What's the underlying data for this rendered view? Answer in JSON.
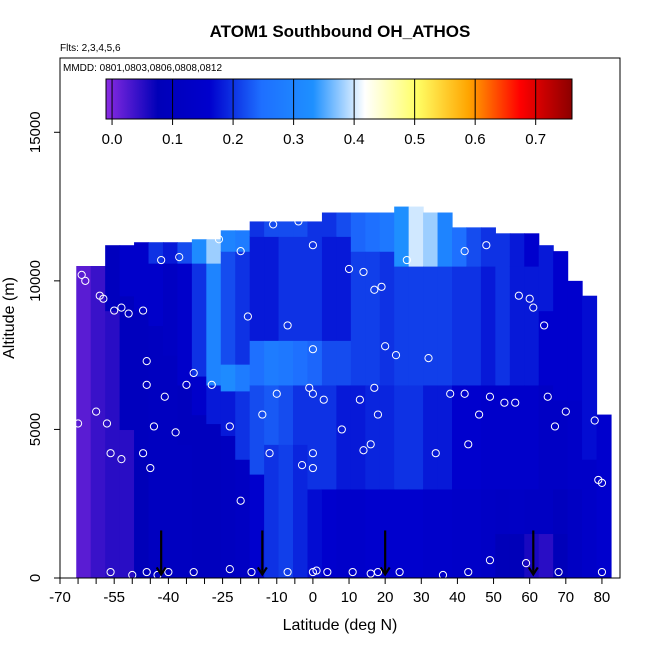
{
  "chart_data": {
    "type": "heatmap",
    "title": "ATOM1 Southbound OH_ATHOS",
    "annotations": [
      "Flts: 2,3,4,5,6",
      "MMDD: 0801,0803,0806,0808,0812"
    ],
    "xlabel": "Latitude (deg N)",
    "ylabel": "Altitude (m)",
    "xlim": [
      -70,
      85
    ],
    "ylim": [
      0,
      17500
    ],
    "x_ticks": [
      -70,
      -55,
      -40,
      -25,
      -10,
      0,
      10,
      20,
      30,
      40,
      50,
      60,
      70,
      80
    ],
    "x_tick_labels": [
      "-70",
      "-55",
      "-40",
      "-25",
      "-10",
      "0",
      "10",
      "20",
      "30",
      "40",
      "50",
      "60",
      "70",
      "80"
    ],
    "y_ticks": [
      0,
      5000,
      10000,
      15000
    ],
    "y_tick_labels": [
      "0",
      "5000",
      "10000",
      "15000"
    ],
    "colorbar": {
      "range": [
        -0.01,
        0.76
      ],
      "ticks": [
        0.0,
        0.1,
        0.2,
        0.3,
        0.4,
        0.5,
        0.6,
        0.7
      ],
      "tick_labels": [
        "0.0",
        "0.1",
        "0.2",
        "0.3",
        "0.4",
        "0.5",
        "0.6",
        "0.7"
      ],
      "colors": [
        "#8a2be2",
        "#0000b8",
        "#0000cd",
        "#1e6fff",
        "#1e90ff",
        "#ffffff",
        "#ffff66",
        "#ffa500",
        "#ff0000",
        "#8b0000"
      ]
    },
    "field_columns": [
      {
        "x": -63.5,
        "top": 10500,
        "seg": [
          [
            0,
            0.02
          ]
        ]
      },
      {
        "x": -59.5,
        "top": 10500,
        "seg": [
          [
            0,
            0.04
          ]
        ]
      },
      {
        "x": -55.5,
        "top": 11200,
        "seg": [
          [
            0,
            0.05
          ],
          [
            9000,
            0.1
          ]
        ]
      },
      {
        "x": -51.5,
        "top": 11200,
        "seg": [
          [
            0,
            0.05
          ],
          [
            5000,
            0.1
          ],
          [
            9500,
            0.15
          ]
        ]
      },
      {
        "x": -47.5,
        "top": 11300,
        "seg": [
          [
            0,
            0.08
          ],
          [
            4000,
            0.1
          ],
          [
            9000,
            0.15
          ]
        ]
      },
      {
        "x": -43.5,
        "top": 11300,
        "seg": [
          [
            0,
            0.11
          ],
          [
            8500,
            0.15
          ],
          [
            10600,
            0.2
          ]
        ]
      },
      {
        "x": -39.5,
        "top": 11300,
        "seg": [
          [
            0,
            0.11
          ],
          [
            7500,
            0.12
          ],
          [
            10600,
            0.18
          ]
        ]
      },
      {
        "x": -35.5,
        "top": 11300,
        "seg": [
          [
            0,
            0.11
          ],
          [
            4500,
            0.1
          ],
          [
            6500,
            0.15
          ],
          [
            10600,
            0.22
          ]
        ]
      },
      {
        "x": -31.5,
        "top": 11400,
        "seg": [
          [
            0,
            0.1
          ],
          [
            5500,
            0.15
          ],
          [
            6800,
            0.2
          ],
          [
            10600,
            0.32
          ]
        ]
      },
      {
        "x": -27.5,
        "top": 11400,
        "seg": [
          [
            0,
            0.1
          ],
          [
            5200,
            0.18
          ],
          [
            6500,
            0.3
          ],
          [
            10600,
            0.38
          ]
        ]
      },
      {
        "x": -23.5,
        "top": 11700,
        "seg": [
          [
            0,
            0.11
          ],
          [
            4800,
            0.18
          ],
          [
            6300,
            0.32
          ],
          [
            7200,
            0.22
          ],
          [
            11000,
            0.3
          ]
        ]
      },
      {
        "x": -19.5,
        "top": 11700,
        "seg": [
          [
            0,
            0.12
          ],
          [
            4000,
            0.2
          ],
          [
            6300,
            0.28
          ],
          [
            7200,
            0.2
          ],
          [
            11000,
            0.28
          ]
        ]
      },
      {
        "x": -15.5,
        "top": 12000,
        "seg": [
          [
            0,
            0.16
          ],
          [
            3500,
            0.22
          ],
          [
            6500,
            0.25
          ],
          [
            8000,
            0.18
          ],
          [
            11500,
            0.2
          ]
        ]
      },
      {
        "x": -11.5,
        "top": 12000,
        "seg": [
          [
            0,
            0.2
          ],
          [
            4500,
            0.23
          ],
          [
            6500,
            0.28
          ],
          [
            8000,
            0.18
          ],
          [
            11500,
            0.22
          ]
        ]
      },
      {
        "x": -7.5,
        "top": 12000,
        "seg": [
          [
            0,
            0.21
          ],
          [
            4500,
            0.22
          ],
          [
            6500,
            0.27
          ],
          [
            8000,
            0.2
          ],
          [
            11500,
            0.22
          ]
        ]
      },
      {
        "x": -3.5,
        "top": 12000,
        "seg": [
          [
            0,
            0.19
          ],
          [
            4500,
            0.2
          ],
          [
            6500,
            0.25
          ],
          [
            8000,
            0.2
          ],
          [
            11500,
            0.22
          ]
        ]
      },
      {
        "x": 0.5,
        "top": 12000,
        "seg": [
          [
            0,
            0.17
          ],
          [
            3000,
            0.2
          ],
          [
            6500,
            0.24
          ],
          [
            8000,
            0.2
          ],
          [
            11500,
            0.2
          ]
        ]
      },
      {
        "x": 4.5,
        "top": 12300,
        "seg": [
          [
            0,
            0.16
          ],
          [
            3000,
            0.2
          ],
          [
            6500,
            0.22
          ],
          [
            8000,
            0.18
          ],
          [
            11500,
            0.2
          ]
        ]
      },
      {
        "x": 8.5,
        "top": 12300,
        "seg": [
          [
            0,
            0.15
          ],
          [
            3000,
            0.18
          ],
          [
            6500,
            0.22
          ],
          [
            8000,
            0.18
          ],
          [
            11500,
            0.22
          ]
        ]
      },
      {
        "x": 12.5,
        "top": 12300,
        "seg": [
          [
            0,
            0.15
          ],
          [
            3000,
            0.18
          ],
          [
            6500,
            0.21
          ],
          [
            11000,
            0.24
          ]
        ]
      },
      {
        "x": 16.5,
        "top": 12300,
        "seg": [
          [
            0,
            0.16
          ],
          [
            3000,
            0.19
          ],
          [
            6500,
            0.21
          ],
          [
            11000,
            0.25
          ]
        ]
      },
      {
        "x": 20.5,
        "top": 12300,
        "seg": [
          [
            0,
            0.16
          ],
          [
            3000,
            0.19
          ],
          [
            6500,
            0.2
          ],
          [
            11000,
            0.27
          ]
        ]
      },
      {
        "x": 24.5,
        "top": 12500,
        "seg": [
          [
            0,
            0.16
          ],
          [
            3000,
            0.2
          ],
          [
            6500,
            0.21
          ],
          [
            10500,
            0.33
          ]
        ]
      },
      {
        "x": 28.5,
        "top": 12500,
        "seg": [
          [
            0,
            0.16
          ],
          [
            3000,
            0.2
          ],
          [
            6500,
            0.21
          ],
          [
            10500,
            0.4
          ]
        ]
      },
      {
        "x": 32.5,
        "top": 12300,
        "seg": [
          [
            0,
            0.15
          ],
          [
            3000,
            0.18
          ],
          [
            6500,
            0.21
          ],
          [
            10500,
            0.38
          ]
        ]
      },
      {
        "x": 36.5,
        "top": 12300,
        "seg": [
          [
            0,
            0.15
          ],
          [
            3000,
            0.18
          ],
          [
            6500,
            0.21
          ],
          [
            10500,
            0.3
          ]
        ]
      },
      {
        "x": 40.5,
        "top": 11800,
        "seg": [
          [
            0,
            0.14
          ],
          [
            3000,
            0.16
          ],
          [
            6500,
            0.2
          ],
          [
            10500,
            0.25
          ]
        ]
      },
      {
        "x": 44.5,
        "top": 11800,
        "seg": [
          [
            0,
            0.14
          ],
          [
            3000,
            0.16
          ],
          [
            6500,
            0.2
          ],
          [
            10500,
            0.22
          ]
        ]
      },
      {
        "x": 48.5,
        "top": 11800,
        "seg": [
          [
            0,
            0.13
          ],
          [
            3000,
            0.15
          ],
          [
            6500,
            0.18
          ],
          [
            10500,
            0.2
          ]
        ]
      },
      {
        "x": 52.5,
        "top": 11600,
        "seg": [
          [
            0,
            0.08
          ],
          [
            1500,
            0.12
          ],
          [
            3000,
            0.15
          ],
          [
            6500,
            0.2
          ],
          [
            10500,
            0.2
          ]
        ]
      },
      {
        "x": 56.5,
        "top": 11600,
        "seg": [
          [
            0,
            0.08
          ],
          [
            1500,
            0.13
          ],
          [
            3000,
            0.15
          ],
          [
            6500,
            0.18
          ],
          [
            10500,
            0.18
          ]
        ]
      },
      {
        "x": 60.5,
        "top": 11600,
        "seg": [
          [
            0,
            0.06
          ],
          [
            1500,
            0.12
          ],
          [
            3000,
            0.15
          ],
          [
            6500,
            0.18
          ],
          [
            10500,
            0.16
          ]
        ]
      },
      {
        "x": 64.5,
        "top": 11200,
        "seg": [
          [
            0,
            0.05
          ],
          [
            1500,
            0.12
          ],
          [
            3000,
            0.13
          ],
          [
            6500,
            0.16
          ],
          [
            9000,
            0.18
          ]
        ]
      },
      {
        "x": 68.5,
        "top": 11000,
        "seg": [
          [
            0,
            0.08
          ],
          [
            1500,
            0.1
          ],
          [
            3000,
            0.13
          ],
          [
            6000,
            0.16
          ]
        ]
      },
      {
        "x": 72.5,
        "top": 10000,
        "seg": [
          [
            0,
            0.12
          ],
          [
            3000,
            0.14
          ],
          [
            6000,
            0.16
          ]
        ]
      },
      {
        "x": 76.5,
        "top": 9500,
        "seg": [
          [
            0,
            0.14
          ],
          [
            4000,
            0.17
          ]
        ]
      },
      {
        "x": 80.5,
        "top": 5500,
        "seg": [
          [
            0,
            0.16
          ]
        ]
      }
    ],
    "sample_points": [
      {
        "x": -64,
        "y": 10200
      },
      {
        "x": -63,
        "y": 10000
      },
      {
        "x": -59,
        "y": 9500
      },
      {
        "x": -58,
        "y": 9400
      },
      {
        "x": -55,
        "y": 9000
      },
      {
        "x": -53,
        "y": 9100
      },
      {
        "x": -51,
        "y": 8900
      },
      {
        "x": -47,
        "y": 9000
      },
      {
        "x": -46,
        "y": 7300
      },
      {
        "x": -46,
        "y": 6500
      },
      {
        "x": -42,
        "y": 10700
      },
      {
        "x": -46,
        "y": 11600
      },
      {
        "x": -37,
        "y": 10800
      },
      {
        "x": -41,
        "y": 6100
      },
      {
        "x": -35,
        "y": 6500
      },
      {
        "x": -33,
        "y": 6900
      },
      {
        "x": -28,
        "y": 6500
      },
      {
        "x": -26,
        "y": 11400
      },
      {
        "x": -20,
        "y": 11000
      },
      {
        "x": -18,
        "y": 8800
      },
      {
        "x": -14,
        "y": 5500
      },
      {
        "x": -10,
        "y": 6200
      },
      {
        "x": -7,
        "y": 8500
      },
      {
        "x": -11,
        "y": 11900
      },
      {
        "x": -4,
        "y": 12000
      },
      {
        "x": 0,
        "y": 11200
      },
      {
        "x": 0,
        "y": 7700
      },
      {
        "x": -1,
        "y": 6400
      },
      {
        "x": 0,
        "y": 6200
      },
      {
        "x": 3,
        "y": 6000
      },
      {
        "x": 8,
        "y": 5000
      },
      {
        "x": 10,
        "y": 10400
      },
      {
        "x": 13,
        "y": 6000
      },
      {
        "x": 14,
        "y": 10300
      },
      {
        "x": 17,
        "y": 6400
      },
      {
        "x": 17,
        "y": 9700
      },
      {
        "x": 19,
        "y": 9800
      },
      {
        "x": 18,
        "y": 5500
      },
      {
        "x": 20,
        "y": 7800
      },
      {
        "x": 26,
        "y": 10700
      },
      {
        "x": 32,
        "y": 7400
      },
      {
        "x": 23,
        "y": 7500
      },
      {
        "x": 42,
        "y": 11000
      },
      {
        "x": 48,
        "y": 11200
      },
      {
        "x": 42,
        "y": 6200
      },
      {
        "x": 38,
        "y": 6200
      },
      {
        "x": 43,
        "y": 4500
      },
      {
        "x": 46,
        "y": 5500
      },
      {
        "x": 49,
        "y": 6100
      },
      {
        "x": 53,
        "y": 5900
      },
      {
        "x": 56,
        "y": 5900
      },
      {
        "x": 57,
        "y": 9500
      },
      {
        "x": 60,
        "y": 9400
      },
      {
        "x": 61,
        "y": 9100
      },
      {
        "x": 64,
        "y": 8500
      },
      {
        "x": 65,
        "y": 6100
      },
      {
        "x": 67,
        "y": 5100
      },
      {
        "x": 70,
        "y": 5600
      },
      {
        "x": 78,
        "y": 5300
      },
      {
        "x": 79,
        "y": 3300
      },
      {
        "x": 80,
        "y": 3200
      },
      {
        "x": 77,
        "y": 9900
      },
      {
        "x": 72,
        "y": 11300
      },
      {
        "x": -60,
        "y": 5600
      },
      {
        "x": -57,
        "y": 5200
      },
      {
        "x": -56,
        "y": 4200
      },
      {
        "x": -53,
        "y": 4000
      },
      {
        "x": -47,
        "y": 4200
      },
      {
        "x": -45,
        "y": 3700
      },
      {
        "x": -44,
        "y": 5100
      },
      {
        "x": -38,
        "y": 4900
      },
      {
        "x": -65,
        "y": 5200
      },
      {
        "x": -23,
        "y": 5100
      },
      {
        "x": -12,
        "y": 4200
      },
      {
        "x": -3,
        "y": 3800
      },
      {
        "x": 0,
        "y": 4200
      },
      {
        "x": 0,
        "y": 3700
      },
      {
        "x": 14,
        "y": 4300
      },
      {
        "x": 16,
        "y": 4500
      },
      {
        "x": 34,
        "y": 4200
      },
      {
        "x": -20,
        "y": 2600
      },
      {
        "x": 49,
        "y": 600
      },
      {
        "x": 59,
        "y": 500
      },
      {
        "x": -56,
        "y": 200
      },
      {
        "x": -50,
        "y": 100
      },
      {
        "x": -46,
        "y": 200
      },
      {
        "x": -43,
        "y": 100
      },
      {
        "x": -40,
        "y": 200
      },
      {
        "x": -33,
        "y": 200
      },
      {
        "x": -23,
        "y": 300
      },
      {
        "x": -17,
        "y": 200
      },
      {
        "x": -7,
        "y": 200
      },
      {
        "x": 0,
        "y": 200
      },
      {
        "x": 1,
        "y": 250
      },
      {
        "x": 4,
        "y": 200
      },
      {
        "x": 11,
        "y": 200
      },
      {
        "x": 16,
        "y": 150
      },
      {
        "x": 18,
        "y": 200
      },
      {
        "x": 24,
        "y": 200
      },
      {
        "x": 36,
        "y": 100
      },
      {
        "x": 43,
        "y": 200
      },
      {
        "x": 68,
        "y": 200
      },
      {
        "x": 80,
        "y": 200
      }
    ],
    "arrow_latitudes": [
      -42,
      -14,
      20,
      61
    ]
  }
}
